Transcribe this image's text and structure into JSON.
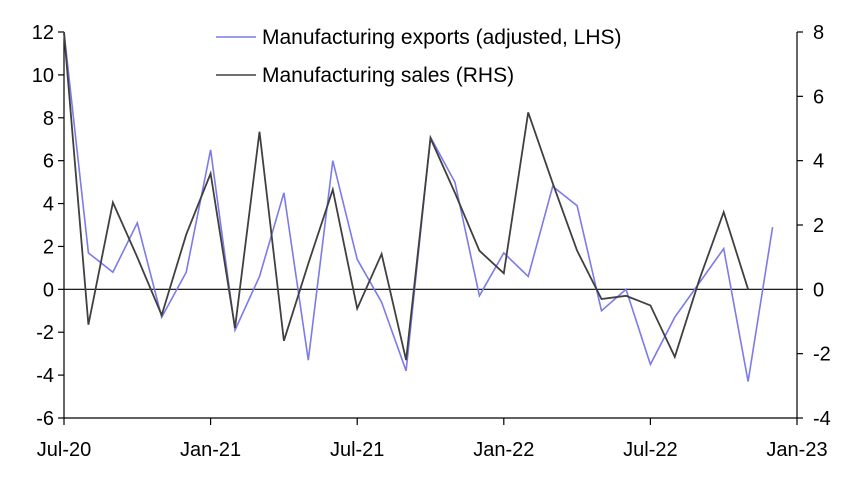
{
  "chart_data": {
    "type": "line",
    "title": "",
    "x": [
      "2020-07",
      "2020-08",
      "2020-09",
      "2020-10",
      "2020-11",
      "2020-12",
      "2021-01",
      "2021-02",
      "2021-03",
      "2021-04",
      "2021-05",
      "2021-06",
      "2021-07",
      "2021-08",
      "2021-09",
      "2021-10",
      "2021-11",
      "2021-12",
      "2022-01",
      "2022-02",
      "2022-03",
      "2022-04",
      "2022-05",
      "2022-06",
      "2022-07",
      "2022-08",
      "2022-09",
      "2022-10",
      "2022-11",
      "2022-12",
      "2023-01"
    ],
    "x_tick_labels": [
      "Jul-20",
      "Jan-21",
      "Jul-21",
      "Jan-22",
      "Jul-22",
      "Jan-23"
    ],
    "left_axis": {
      "ylim": [
        -6,
        12
      ],
      "ticks": [
        "-6",
        "-4",
        "-2",
        "0",
        "2",
        "4",
        "6",
        "8",
        "10",
        "12"
      ]
    },
    "right_axis": {
      "ylim": [
        -4,
        8
      ],
      "ticks": [
        "-4",
        "-2",
        "0",
        "2",
        "4",
        "6",
        "8"
      ]
    },
    "legend_position": "top-center",
    "series": [
      {
        "name": "Manufacturing exports (adjusted, LHS)",
        "axis": "left",
        "color": "#7b7bea",
        "values": [
          12.0,
          1.7,
          0.8,
          3.1,
          -1.3,
          0.8,
          6.5,
          -1.9,
          0.6,
          4.5,
          -3.3,
          6.0,
          1.4,
          -0.6,
          -3.8,
          7.1,
          5.0,
          -0.3,
          1.7,
          0.6,
          4.8,
          3.9,
          -1.0,
          0.0,
          -3.5,
          -1.3,
          0.3,
          1.9,
          -4.3,
          2.9,
          null
        ]
      },
      {
        "name": "Manufacturing sales (RHS)",
        "axis": "right",
        "color": "#404040",
        "values": [
          8.0,
          -1.1,
          2.7,
          1.0,
          -0.8,
          1.7,
          3.6,
          -1.2,
          4.9,
          -1.6,
          0.8,
          3.1,
          -0.6,
          1.1,
          -2.2,
          4.7,
          3.0,
          1.2,
          0.5,
          5.5,
          3.3,
          1.2,
          -0.3,
          -0.2,
          -0.5,
          -2.1,
          0.3,
          2.4,
          0.0,
          null,
          null
        ]
      }
    ]
  }
}
